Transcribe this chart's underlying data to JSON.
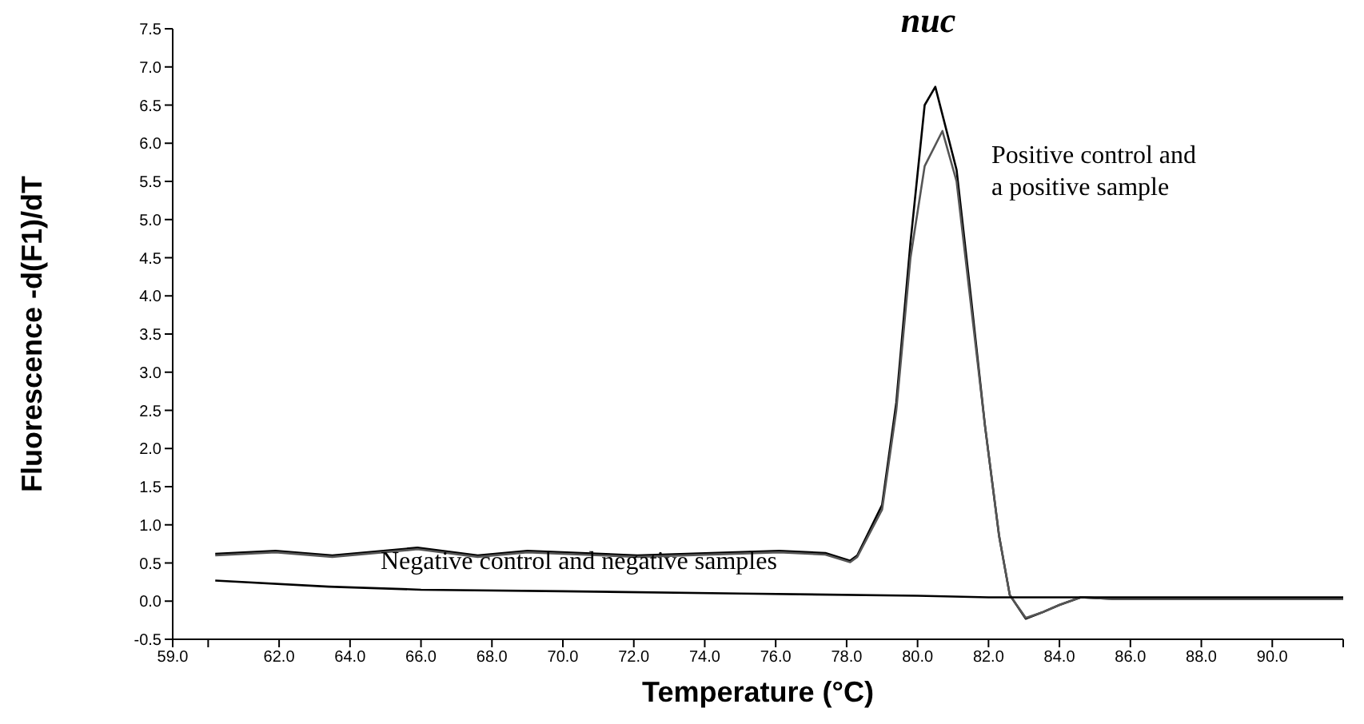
{
  "chart_data": {
    "type": "line",
    "title": "nuc",
    "xlabel": "Temperature (°C)",
    "ylabel": "Fluorescence -d(F1)/dT",
    "xlim": [
      59,
      92
    ],
    "xticks": [
      {
        "value": 59,
        "label": "59.0"
      },
      {
        "value": 60,
        "label": null
      },
      {
        "value": 62,
        "label": "62.0"
      },
      {
        "value": 64,
        "label": "64.0"
      },
      {
        "value": 66,
        "label": "66.0"
      },
      {
        "value": 68,
        "label": "68.0"
      },
      {
        "value": 70,
        "label": "70.0"
      },
      {
        "value": 72,
        "label": "72.0"
      },
      {
        "value": 74,
        "label": "74.0"
      },
      {
        "value": 76,
        "label": "76.0"
      },
      {
        "value": 78,
        "label": "78.0"
      },
      {
        "value": 80,
        "label": "80.0"
      },
      {
        "value": 82,
        "label": "82.0"
      },
      {
        "value": 84,
        "label": "84.0"
      },
      {
        "value": 86,
        "label": "86.0"
      },
      {
        "value": 88,
        "label": "88.0"
      },
      {
        "value": 90,
        "label": "90.0"
      },
      {
        "value": 92,
        "label": null
      }
    ],
    "ylim": [
      -0.5,
      7.5
    ],
    "yticks": [
      -0.5,
      {
        "value": 0,
        "label": "0.0"
      },
      0.5,
      {
        "value": 1,
        "label": "1.0"
      },
      1.5,
      {
        "value": 2,
        "label": "2.0"
      },
      2.5,
      {
        "value": 3,
        "label": "3.0"
      },
      3.5,
      {
        "value": 4,
        "label": "4.0"
      },
      4.5,
      {
        "value": 5,
        "label": "5.0"
      },
      5.5,
      {
        "value": 6,
        "label": "6.0"
      },
      6.5,
      {
        "value": 7,
        "label": "7.0"
      },
      7.5
    ],
    "marker": "none",
    "line_style": "solid",
    "series": [
      {
        "color": "#000000",
        "x": [
          60.2,
          61.9,
          63.5,
          65.9,
          67.6,
          69,
          72.1,
          76.1,
          77.4,
          78.1,
          78.3,
          79,
          79.4,
          79.8,
          80.2,
          80.5,
          81.1,
          81.5,
          81.9,
          82.3,
          82.6,
          83.05,
          83.5,
          84,
          84.6,
          85.5,
          92
        ],
        "values": [
          0.62,
          0.66,
          0.6,
          0.7,
          0.6,
          0.66,
          0.6,
          0.66,
          0.63,
          0.53,
          0.6,
          1.26,
          2.6,
          4.7,
          6.5,
          6.74,
          5.65,
          4,
          2.3,
          0.85,
          0.08,
          -0.23,
          -0.15,
          -0.05,
          0.05,
          0.03,
          0.03
        ]
      },
      {
        "color": "#555555",
        "x": [
          60.2,
          61.9,
          63.5,
          65.9,
          67.6,
          69,
          72.1,
          76.1,
          77.4,
          78.1,
          78.3,
          79,
          79.4,
          79.8,
          80.2,
          80.7,
          81.1,
          81.5,
          81.9,
          82.3,
          82.6,
          83.05,
          83.5,
          84,
          84.6,
          85.5,
          92
        ],
        "values": [
          0.6,
          0.64,
          0.58,
          0.68,
          0.58,
          0.64,
          0.58,
          0.64,
          0.61,
          0.51,
          0.58,
          1.2,
          2.5,
          4.5,
          5.7,
          6.16,
          5.5,
          3.9,
          2.3,
          0.85,
          0.08,
          -0.22,
          -0.15,
          -0.05,
          0.05,
          0.03,
          0.03
        ]
      },
      {
        "color": "#000000",
        "x": [
          60.2,
          63.4,
          66,
          70,
          75,
          80,
          82,
          92
        ],
        "values": [
          0.27,
          0.19,
          0.15,
          0.13,
          0.1,
          0.07,
          0.05,
          0.05
        ]
      }
    ],
    "annotations": [
      "Positive control and\na positive sample",
      "Negative control and negative samples"
    ]
  }
}
